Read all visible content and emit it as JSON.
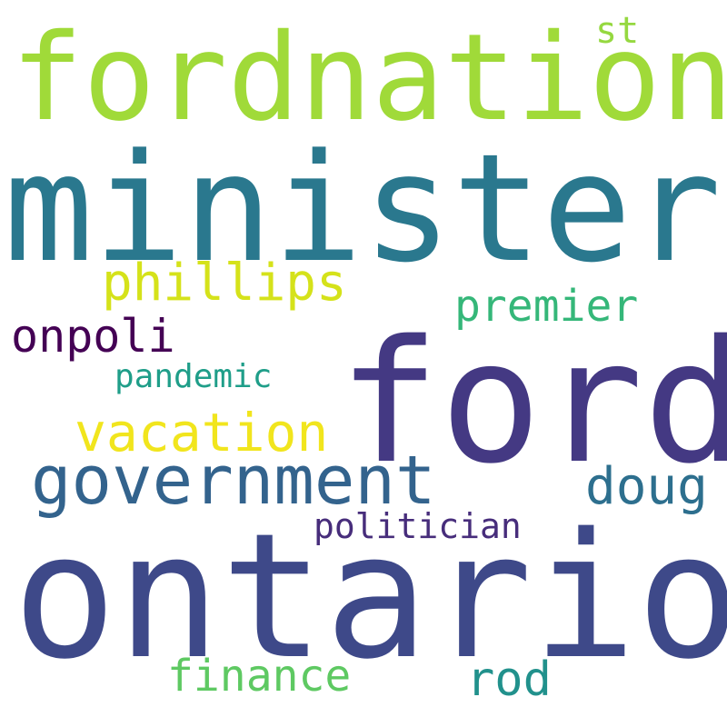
{
  "word_cloud": {
    "background": "#ffffff",
    "words": [
      {
        "key": "fordnation",
        "text": "fordnation",
        "color": "#a0da39"
      },
      {
        "key": "minister",
        "text": "minister",
        "color": "#2a788e"
      },
      {
        "key": "ford",
        "text": "ford",
        "color": "#443983"
      },
      {
        "key": "ontario",
        "text": "ontario",
        "color": "#3e4989"
      },
      {
        "key": "government",
        "text": "government",
        "color": "#33638d"
      },
      {
        "key": "phillips",
        "text": "phillips",
        "color": "#d5e21a"
      },
      {
        "key": "premier",
        "text": "premier",
        "color": "#35b779"
      },
      {
        "key": "onpoli",
        "text": "onpoli",
        "color": "#440154"
      },
      {
        "key": "pandemic",
        "text": "pandemic",
        "color": "#1f9e89"
      },
      {
        "key": "vacation",
        "text": "vacation",
        "color": "#f1e51d"
      },
      {
        "key": "doug",
        "text": "doug",
        "color": "#2d6f8e"
      },
      {
        "key": "politician",
        "text": "politician",
        "color": "#472d7b"
      },
      {
        "key": "st",
        "text": "st",
        "color": "#95d840"
      },
      {
        "key": "finance",
        "text": "finance",
        "color": "#5ec962"
      },
      {
        "key": "rod",
        "text": "rod",
        "color": "#21918c"
      }
    ]
  }
}
